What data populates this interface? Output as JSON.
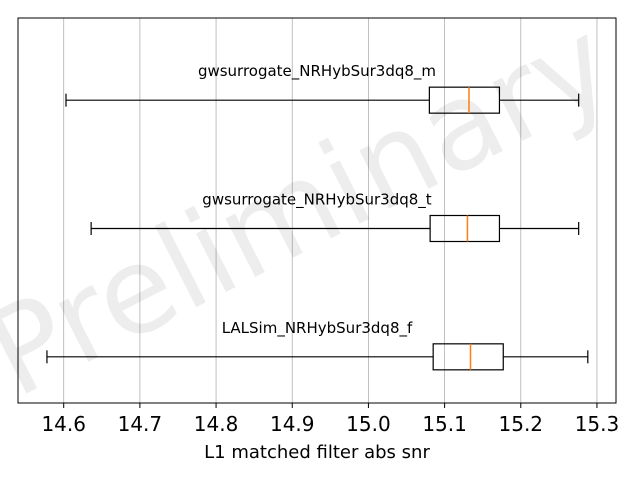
{
  "chart_data": {
    "type": "boxplot",
    "orientation": "horizontal",
    "xlabel": "L1 matched filter abs snr",
    "xlim": [
      14.54,
      15.325
    ],
    "xticks": [
      14.6,
      14.7,
      14.8,
      14.9,
      15.0,
      15.1,
      15.2,
      15.3
    ],
    "xtick_labels": [
      "14.6",
      "14.7",
      "14.8",
      "14.9",
      "15.0",
      "15.1",
      "15.2",
      "15.3"
    ],
    "grid": "vertical",
    "watermark": "Preliminary",
    "median_color": "#ff7f0e",
    "box_color": "#000000",
    "grid_color": "#b0b0b0",
    "series": [
      {
        "name": "gwsurrogate_NRHybSur3dq8_m",
        "whisker_low": 14.603,
        "q1": 15.08,
        "median": 15.132,
        "q3": 15.172,
        "whisker_high": 15.276
      },
      {
        "name": "gwsurrogate_NRHybSur3dq8_t",
        "whisker_low": 14.636,
        "q1": 15.081,
        "median": 15.13,
        "q3": 15.172,
        "whisker_high": 15.276
      },
      {
        "name": "LALSim_NRHybSur3dq8_f",
        "whisker_low": 14.578,
        "q1": 15.085,
        "median": 15.134,
        "q3": 15.177,
        "whisker_high": 15.288
      }
    ]
  }
}
